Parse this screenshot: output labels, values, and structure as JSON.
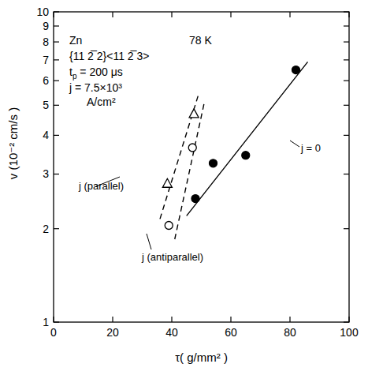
{
  "chart_data": {
    "type": "scatter",
    "log": "y",
    "grid": false,
    "x_label": "τ( g/mm² )",
    "y_label": "v (10⁻² cm/s )",
    "xlim": [
      0,
      100
    ],
    "xticks": [
      0,
      20,
      40,
      60,
      80,
      100
    ],
    "ylim": [
      1,
      10
    ],
    "yticks": [
      1,
      2,
      3,
      4,
      5,
      6,
      7,
      8,
      9,
      10
    ],
    "annotations": [
      {
        "text": "Zn"
      },
      {
        "text": "78 K"
      },
      {
        "text": "{11 2̅ 2}<11 2̅ 3>"
      },
      {
        "text": "t",
        "sub": "p",
        "after": " = 200 μs"
      },
      {
        "text": "j = 7.5×10³"
      },
      {
        "text": "A/cm²"
      }
    ],
    "series": [
      {
        "name": "j = 0",
        "color": "#000000",
        "marker": "circle_filled",
        "line_style": "solid",
        "x": [
          48,
          54,
          65,
          82
        ],
        "values": [
          2.5,
          3.25,
          3.45,
          6.5
        ],
        "fit": {
          "x": [
            45,
            86
          ],
          "values": [
            2.2,
            6.9
          ]
        }
      },
      {
        "name": "j (parallel)",
        "color": "#000000",
        "marker": "triangle_open",
        "line_style": "dashed",
        "x": [
          38.5,
          47.5
        ],
        "values": [
          2.8,
          4.7
        ],
        "fit": {
          "x": [
            36,
            49
          ],
          "values": [
            2.15,
            5.4
          ]
        }
      },
      {
        "name": "j (antiparallel)",
        "color": "#000000",
        "marker": "circle_open",
        "line_style": "dashed",
        "x": [
          39,
          47
        ],
        "values": [
          2.05,
          3.65
        ],
        "fit": {
          "x": [
            41,
            51
          ],
          "values": [
            1.85,
            5.1
          ]
        }
      }
    ]
  }
}
